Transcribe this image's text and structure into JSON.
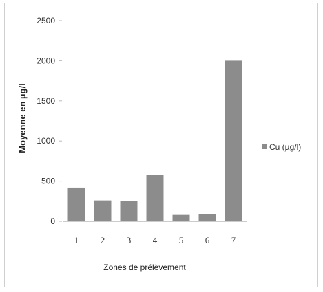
{
  "chart_data": {
    "type": "bar",
    "title": "",
    "xlabel": "Zones de prélèvement",
    "ylabel": "Moyenne en µg/l",
    "categories": [
      "1",
      "2",
      "3",
      "4",
      "5",
      "6",
      "7"
    ],
    "series": [
      {
        "name": "Cu (µg/l)",
        "values": [
          420,
          260,
          250,
          580,
          80,
          90,
          2000
        ],
        "color": "#8c8c8c"
      }
    ],
    "ylim": [
      0,
      2500
    ],
    "yticks": [
      "0",
      "500",
      "1000",
      "1500",
      "2000",
      "2500"
    ],
    "grid": false,
    "legend_position": "right"
  }
}
